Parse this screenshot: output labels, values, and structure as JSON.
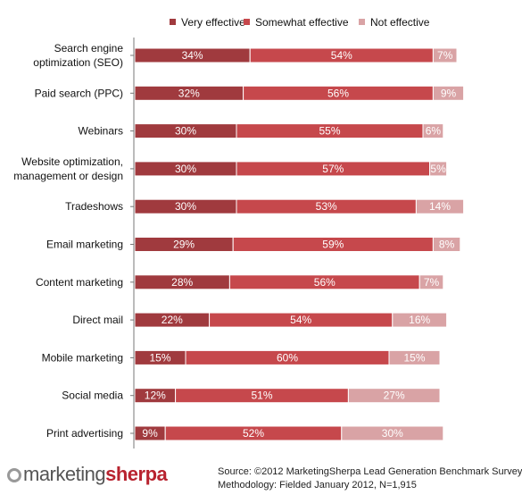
{
  "chart_data": {
    "type": "bar",
    "orientation": "horizontal",
    "stacked": true,
    "categories": [
      "Search engine optimization (SEO)",
      "Paid search (PPC)",
      "Webinars",
      "Website optimization, management or design",
      "Tradeshows",
      "Email marketing",
      "Content marketing",
      "Direct mail",
      "Mobile marketing",
      "Social media",
      "Print advertising"
    ],
    "category_lines": [
      [
        "Search engine",
        "optimization (SEO)"
      ],
      [
        "Paid search (PPC)"
      ],
      [
        "Webinars"
      ],
      [
        "Website optimization,",
        "management or design"
      ],
      [
        "Tradeshows"
      ],
      [
        "Email marketing"
      ],
      [
        "Content marketing"
      ],
      [
        "Direct mail"
      ],
      [
        "Mobile marketing"
      ],
      [
        "Social media"
      ],
      [
        "Print advertising"
      ]
    ],
    "series": [
      {
        "name": "Very effective",
        "color": "#a03a3e",
        "values": [
          34,
          32,
          30,
          30,
          30,
          29,
          28,
          22,
          15,
          12,
          9
        ]
      },
      {
        "name": "Somewhat effective",
        "color": "#c6484c",
        "values": [
          54,
          56,
          55,
          57,
          53,
          59,
          56,
          54,
          60,
          51,
          52
        ]
      },
      {
        "name": "Not effective",
        "color": "#d9a3a5",
        "values": [
          7,
          9,
          6,
          5,
          14,
          8,
          7,
          16,
          15,
          27,
          30
        ]
      }
    ],
    "value_suffix": "%",
    "legend_position": "top",
    "grid": false,
    "xlim": [
      0,
      100
    ]
  },
  "footer": {
    "logo_left": "marketing",
    "logo_right": "sherpa",
    "source_line": "Source: ©2012 MarketingSherpa Lead Generation Benchmark Survey",
    "methodology_line": "Methodology: Fielded January 2012, N=1,915"
  }
}
